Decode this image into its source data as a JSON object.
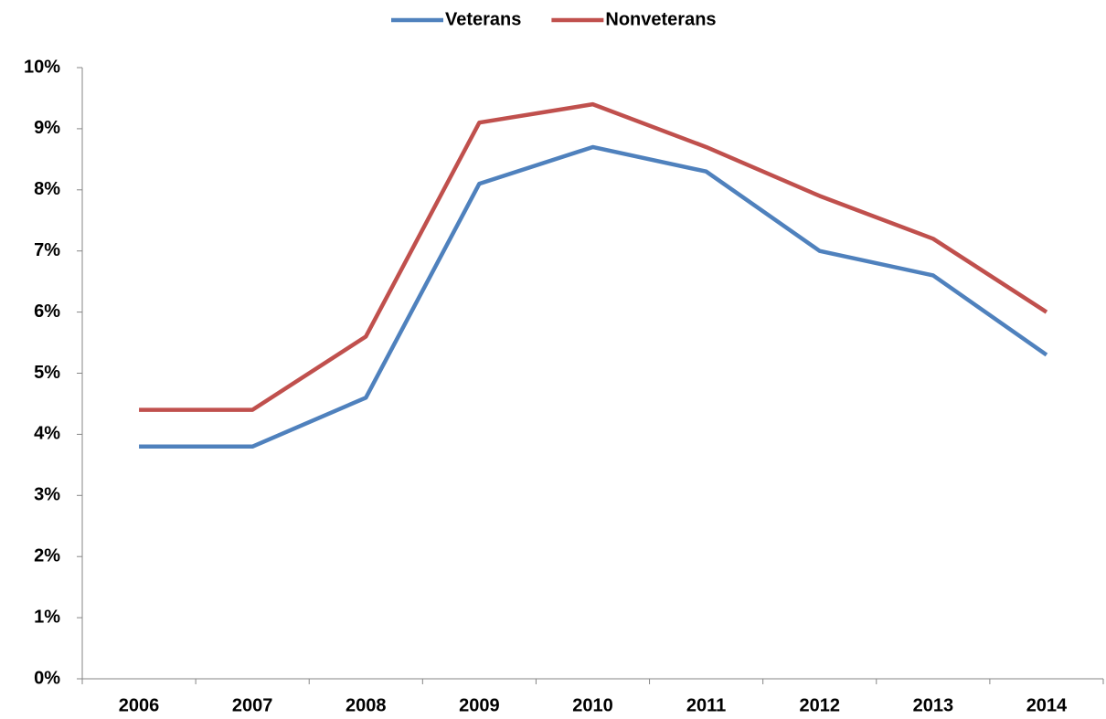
{
  "chart_data": {
    "type": "line",
    "categories": [
      "2006",
      "2007",
      "2008",
      "2009",
      "2010",
      "2011",
      "2012",
      "2013",
      "2014"
    ],
    "series": [
      {
        "name": "Veterans",
        "color": "#4f81bd",
        "values": [
          3.8,
          3.8,
          4.6,
          8.1,
          8.7,
          8.3,
          7.0,
          6.6,
          5.3
        ]
      },
      {
        "name": "Nonveterans",
        "color": "#c0504d",
        "values": [
          4.4,
          4.4,
          5.6,
          9.1,
          9.4,
          8.7,
          7.9,
          7.2,
          6.0
        ]
      }
    ],
    "ylim": [
      0,
      10
    ],
    "yticks": [
      {
        "value": 0,
        "label": "0%"
      },
      {
        "value": 1,
        "label": "1%"
      },
      {
        "value": 2,
        "label": "2%"
      },
      {
        "value": 3,
        "label": "3%"
      },
      {
        "value": 4,
        "label": "4%"
      },
      {
        "value": 5,
        "label": "5%"
      },
      {
        "value": 6,
        "label": "6%"
      },
      {
        "value": 7,
        "label": "7%"
      },
      {
        "value": 8,
        "label": "8%"
      },
      {
        "value": 9,
        "label": "9%"
      },
      {
        "value": 10,
        "label": "10%"
      }
    ],
    "grid": false,
    "legend": "top"
  }
}
